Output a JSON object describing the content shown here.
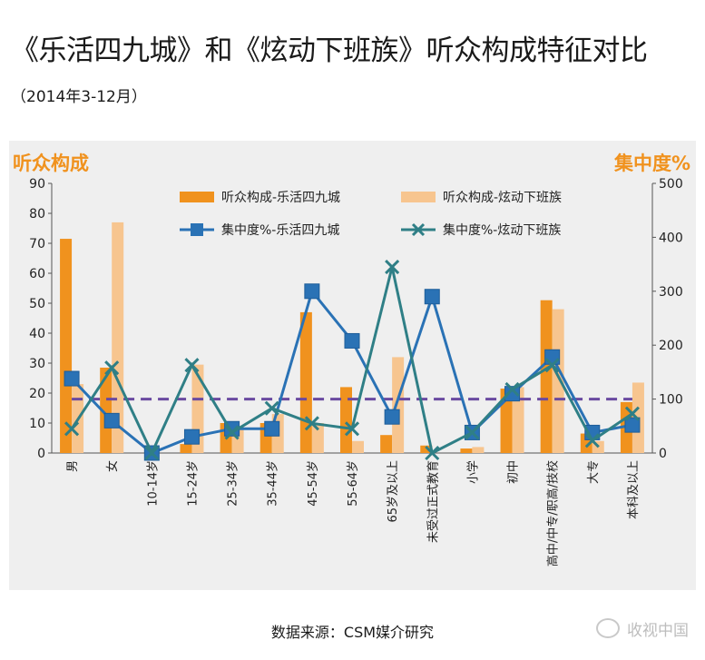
{
  "page": {
    "title": "《乐活四九城》和《炫动下班族》听众构成特征对比",
    "subtitle": "（2014年3-12月）",
    "source": "数据来源：CSM媒介研究",
    "brand": "收视中国"
  },
  "colors": {
    "bar1": "#f0921e",
    "bar2": "#f7c58f",
    "line1": "#2a72b5",
    "line2": "#2f7f86",
    "ref_line": "#6a4aa0",
    "axis_title": "#f0921e"
  },
  "chart_data": {
    "type": "bar",
    "left_axis_title": "听众构成",
    "right_axis_title": "集中度%",
    "ylim": [
      0,
      90
    ],
    "y_ticks": [
      0,
      10,
      20,
      30,
      40,
      50,
      60,
      70,
      80,
      90
    ],
    "y2lim": [
      0,
      500
    ],
    "y2_ticks": [
      0,
      100,
      200,
      300,
      400,
      500
    ],
    "reference_y2": 100,
    "categories": [
      "男",
      "女",
      "10-14岁",
      "15-24岁",
      "25-34岁",
      "35-44岁",
      "45-54岁",
      "55-64岁",
      "65岁及以上",
      "未受过正式教育",
      "小学",
      "初中",
      "高中/中专/职高/技校",
      "大专",
      "本科及以上"
    ],
    "bar_series": [
      {
        "name": "听众构成-乐活四九城",
        "values": [
          71.5,
          28.5,
          0,
          3,
          10,
          10,
          47,
          22,
          6,
          2.5,
          1.5,
          21.5,
          51,
          6.5,
          17
        ]
      },
      {
        "name": "听众构成-炫动下班族",
        "values": [
          23,
          77,
          0,
          29.5,
          9,
          13,
          10,
          4,
          32,
          0,
          2,
          22,
          48,
          4,
          23.5
        ]
      }
    ],
    "line_series": [
      {
        "name": "集中度%-乐活四九城",
        "axis": "right",
        "marker": "square",
        "values": [
          138,
          60,
          0,
          30,
          45,
          45,
          300,
          208,
          67,
          290,
          38,
          110,
          178,
          38,
          52
        ]
      },
      {
        "name": "集中度%-炫动下班族",
        "axis": "right",
        "marker": "x",
        "values": [
          45,
          158,
          0,
          163,
          38,
          83,
          55,
          45,
          345,
          0,
          38,
          118,
          163,
          23,
          73
        ]
      }
    ],
    "legend_position": "top-center",
    "grid": false
  }
}
